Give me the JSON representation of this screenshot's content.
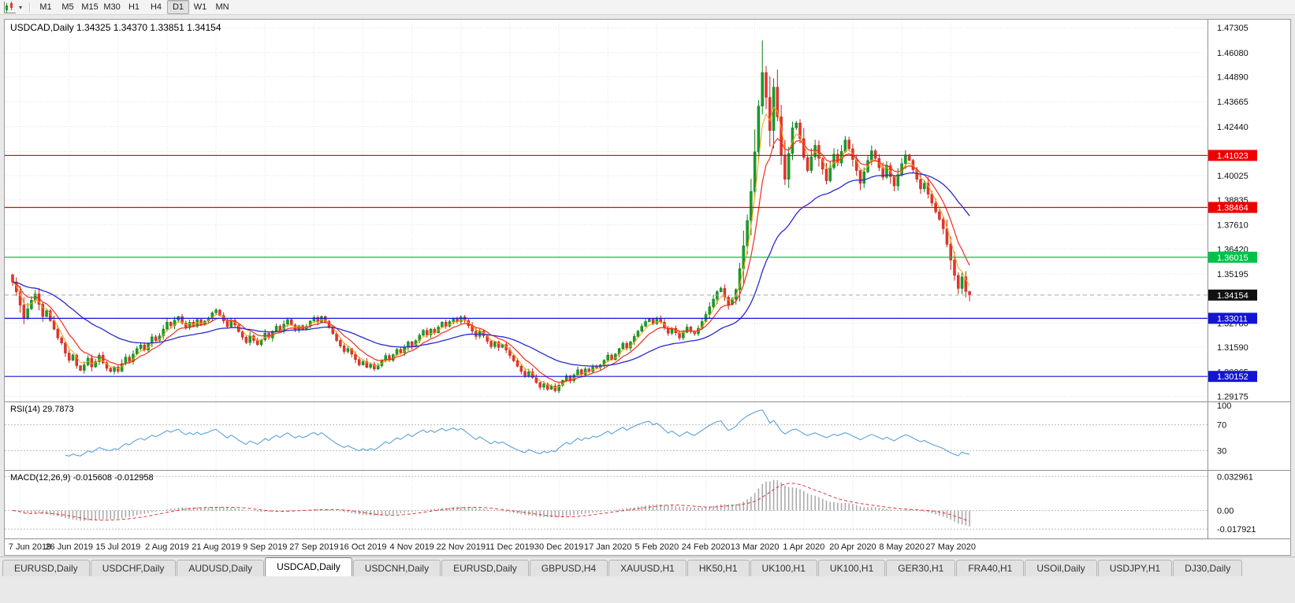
{
  "toolbar": {
    "timeframes": [
      "M1",
      "M5",
      "M15",
      "M30",
      "H1",
      "H4",
      "D1",
      "W1",
      "MN"
    ],
    "active_timeframe": "D1",
    "dropdown_caret": "▾"
  },
  "chart": {
    "header_line": "USDCAD,Daily 1.34325 1.34370 1.33851 1.34154",
    "symbol": "USDCAD",
    "period": "Daily",
    "open": "1.34325",
    "high": "1.34370",
    "low": "1.33851",
    "close": "1.34154",
    "ylim": [
      1.2892,
      1.477
    ],
    "y_axis_labels": [
      "1.47305",
      "1.46080",
      "1.44890",
      "1.43665",
      "1.42440",
      "1.40025",
      "1.38835",
      "1.37610",
      "1.36420",
      "1.35195",
      "1.32780",
      "1.31590",
      "1.30365",
      "1.29175"
    ],
    "grid_prices": [
      1.47305,
      1.4608,
      1.4489,
      1.43665,
      1.4244,
      1.41215,
      1.40025,
      1.38835,
      1.3761,
      1.3642,
      1.35195,
      1.3397,
      1.3278,
      1.3159,
      1.30365,
      1.29175
    ],
    "horizontal_lines": [
      {
        "price": 1.41023,
        "label": "1.41023",
        "color": "#ee0000",
        "type": "resistance"
      },
      {
        "price": 1.38464,
        "label": "1.38464",
        "color": "#ee0000",
        "type": "resistance"
      },
      {
        "price": 1.36015,
        "label": "1.36015",
        "color": "#00c24a",
        "type": "level"
      },
      {
        "price": 1.33011,
        "label": "1.33011",
        "color": "#1414d6",
        "type": "support"
      },
      {
        "price": 1.30152,
        "label": "1.30152",
        "color": "#1414d6",
        "type": "support"
      }
    ],
    "current_price": {
      "label": "1.34154",
      "value": 1.34154,
      "badge_color": "#111111"
    },
    "colors": {
      "up": "#17a02a",
      "up_border": "#0b7a17",
      "down": "#e8352e",
      "down_border": "#bf231d",
      "ma_fast": "#ffa000",
      "ma_mid": "#f22c23",
      "ma_slow": "#2a2ad0",
      "grid": "#e3e3e3"
    }
  },
  "chart_data": {
    "type": "candlestick",
    "symbol": "USDCAD",
    "timeframe": "Daily",
    "x_tick_labels": [
      "7 Jun 2019",
      "26 Jun 2019",
      "15 Jul 2019",
      "2 Aug 2019",
      "21 Aug 2019",
      "9 Sep 2019",
      "27 Sep 2019",
      "16 Oct 2019",
      "4 Nov 2019",
      "22 Nov 2019",
      "11 Dec 2019",
      "30 Dec 2019",
      "17 Jan 2020",
      "5 Feb 2020",
      "24 Feb 2020",
      "13 Mar 2020",
      "1 Apr 2020",
      "20 Apr 2020",
      "8 May 2020",
      "27 May 2020"
    ],
    "tick_first_index": 2,
    "tick_step": 13,
    "closes": [
      1.348,
      1.3432,
      1.3366,
      1.3302,
      1.3348,
      1.339,
      1.3421,
      1.337,
      1.331,
      1.3338,
      1.329,
      1.3248,
      1.3205,
      1.318,
      1.313,
      1.3095,
      1.312,
      1.3068,
      1.3045,
      1.3072,
      1.3105,
      1.3062,
      1.3088,
      1.312,
      1.3082,
      1.3055,
      1.304,
      1.3062,
      1.3041,
      1.3078,
      1.311,
      1.3088,
      1.3125,
      1.3152,
      1.317,
      1.3145,
      1.3178,
      1.321,
      1.3192,
      1.3215,
      1.3248,
      1.3282,
      1.3265,
      1.3292,
      1.331,
      1.3278,
      1.3255,
      1.3282,
      1.3262,
      1.3295,
      1.327,
      1.3288,
      1.3302,
      1.3328,
      1.3342,
      1.3315,
      1.3288,
      1.326,
      1.3292,
      1.3268,
      1.3235,
      1.3208,
      1.3182,
      1.3215,
      1.3192,
      1.3172,
      1.3195,
      1.3228,
      1.3205,
      1.3238,
      1.3262,
      1.324,
      1.3272,
      1.3295,
      1.3268,
      1.3242,
      1.3265,
      1.3248,
      1.3262,
      1.3288,
      1.3305,
      1.3282,
      1.331,
      1.3285,
      1.3255,
      1.3225,
      1.3192,
      1.3165,
      1.3138,
      1.3152,
      1.3125,
      1.3098,
      1.3072,
      1.3088,
      1.306,
      1.3075,
      1.3052,
      1.3068,
      1.3092,
      1.3118,
      1.3095,
      1.3122,
      1.3148,
      1.3132,
      1.3158,
      1.3185,
      1.3162,
      1.3192,
      1.3218,
      1.3242,
      1.322,
      1.3248,
      1.323,
      1.3258,
      1.3282,
      1.3262,
      1.3285,
      1.3302,
      1.3285,
      1.3308,
      1.329,
      1.3265,
      1.3238,
      1.3212,
      1.3238,
      1.3215,
      1.3188,
      1.3162,
      1.3185,
      1.3158,
      1.3172,
      1.3145,
      1.3118,
      1.3092,
      1.3065,
      1.304,
      1.3015,
      1.3038,
      1.301,
      1.2985,
      1.2962,
      1.2978,
      1.2952,
      1.2968,
      1.2945,
      1.2972,
      1.2995,
      1.3018,
      1.2995,
      1.3022,
      1.3048,
      1.3025,
      1.3052,
      1.304,
      1.3065,
      1.3058,
      1.3072,
      1.3095,
      1.312,
      1.3098,
      1.3125,
      1.3152,
      1.3178,
      1.3155,
      1.3185,
      1.3212,
      1.3238,
      1.3262,
      1.3285,
      1.3298,
      1.3275,
      1.3302,
      1.3282,
      1.3255,
      1.3228,
      1.3252,
      1.323,
      1.3205,
      1.3232,
      1.3258,
      1.3235,
      1.3225,
      1.3252,
      1.3285,
      1.332,
      1.3358,
      1.3395,
      1.3432,
      1.3448,
      1.3405,
      1.3368,
      1.3395,
      1.3442,
      1.3545,
      1.3658,
      1.3782,
      1.3925,
      1.412,
      1.4345,
      1.451,
      1.4388,
      1.4225,
      1.4438,
      1.4292,
      1.4105,
      1.3985,
      1.4112,
      1.4238,
      1.4262,
      1.4185,
      1.4092,
      1.4028,
      1.4095,
      1.4152,
      1.4088,
      1.4035,
      1.3978,
      1.4042,
      1.4108,
      1.4065,
      1.4122,
      1.4178,
      1.4135,
      1.4082,
      1.4028,
      1.3965,
      1.4022,
      1.4078,
      1.4125,
      1.4088,
      1.4042,
      1.3995,
      1.4052,
      1.3998,
      1.3952,
      1.4008,
      1.4062,
      1.4105,
      1.4078,
      1.4032,
      1.3985,
      1.3938,
      1.3965,
      1.3912,
      1.3868,
      1.3825,
      1.3788,
      1.3742,
      1.3665,
      1.3588,
      1.3512,
      1.3448,
      1.3505,
      1.3433,
      1.34154
    ],
    "spike_high": 1.4668,
    "spike_index": 199,
    "last_candle": {
      "open": 1.34325,
      "high": 1.3437,
      "low": 1.33851,
      "close": 1.34154
    },
    "indicators": {
      "ma_fast_period": 4,
      "ma_mid_period": 9,
      "ma_slow_period": 34,
      "rsi_period": 14,
      "macd_params": [
        12,
        26,
        9
      ]
    }
  },
  "rsi_panel": {
    "label": "RSI(14) 29.7873",
    "value": 29.7873,
    "axis_labels": [
      "100",
      "70",
      "30"
    ],
    "axis_values": [
      100,
      70,
      30
    ],
    "level_lines": [
      70,
      30
    ],
    "ylim": [
      0,
      105
    ],
    "line_color": "#58a2d8"
  },
  "macd_panel": {
    "label": "MACD(12,26,9) -0.015608 -0.012958",
    "macd_value": -0.015608,
    "signal_value": -0.012958,
    "axis_labels": [
      "0.032961",
      "0.00",
      "-0.017921"
    ],
    "axis_values": [
      0.032961,
      0,
      -0.017921
    ],
    "ylim": [
      -0.027,
      0.0385
    ],
    "histogram_color": "#ababab",
    "signal_color": "#e23434"
  },
  "tabs": {
    "items": [
      "EURUSD,Daily",
      "USDCHF,Daily",
      "AUDUSD,Daily",
      "USDCAD,Daily",
      "USDCNH,Daily",
      "EURUSD,Daily",
      "GBPUSD,H4",
      "XAUUSD,H1",
      "HK50,H1",
      "UK100,H1",
      "UK100,H1",
      "GER30,H1",
      "FRA40,H1",
      "USOil,Daily",
      "USDJPY,H1",
      "DJ30,Daily"
    ],
    "active_index": 3
  }
}
